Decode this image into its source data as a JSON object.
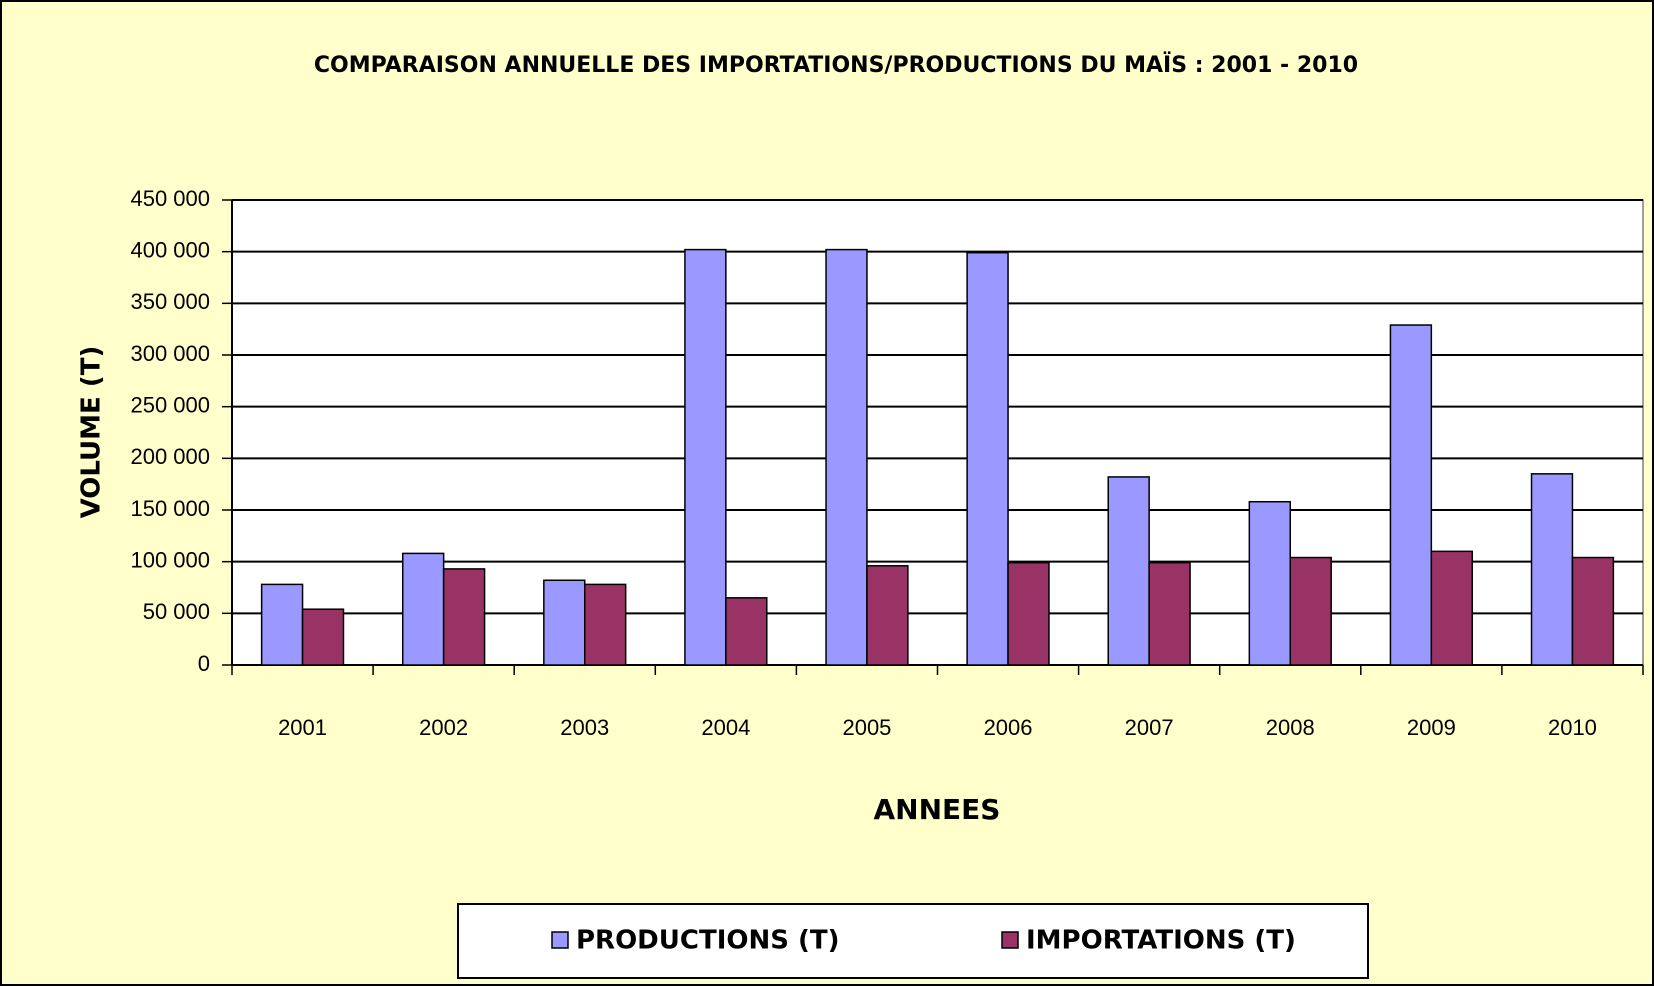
{
  "chart_data": {
    "type": "bar",
    "title": "COMPARAISON ANNUELLE DES IMPORTATIONS/PRODUCTIONS DU MAÏS : 2001 - 2010",
    "x_label": "ANNEES",
    "y_label": "VOLUME (T)",
    "categories": [
      "2001",
      "2002",
      "2003",
      "2004",
      "2005",
      "2006",
      "2007",
      "2008",
      "2009",
      "2010"
    ],
    "series": [
      {
        "name": "PRODUCTIONS (T)",
        "color": "#9999ff",
        "values": [
          78000,
          108000,
          82000,
          402000,
          402000,
          399000,
          182000,
          158000,
          329000,
          185000
        ]
      },
      {
        "name": "IMPORTATIONS (T)",
        "color": "#993366",
        "values": [
          54000,
          93000,
          78000,
          65000,
          96000,
          99000,
          99000,
          104000,
          110000,
          104000
        ]
      }
    ],
    "ylim": [
      0,
      450000
    ],
    "yticks": [
      0,
      {
        "value": 50000,
        "label": "50 000"
      },
      {
        "value": 100000,
        "label": "100 000"
      },
      {
        "value": 150000,
        "label": "150 000"
      },
      {
        "value": 200000,
        "label": "200 000"
      },
      {
        "value": 250000,
        "label": "250 000"
      },
      {
        "value": 300000,
        "label": "300 000"
      },
      {
        "value": 350000,
        "label": "350 000"
      },
      {
        "value": 400000,
        "label": "400 000"
      },
      {
        "value": 450000,
        "label": "450 000"
      }
    ],
    "grid": true,
    "legend": "bottom"
  }
}
